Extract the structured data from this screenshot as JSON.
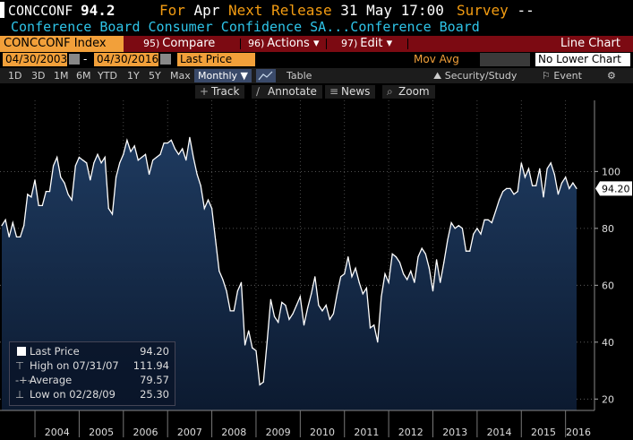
{
  "header": {
    "ticker": "CONCCONF",
    "last_value": "94.2",
    "for_label": "For",
    "for_value": "Apr",
    "next_label": "Next Release",
    "next_value": "31 May 17:00",
    "survey_label": "Survey",
    "survey_value": "--",
    "description": "Conference Board Consumer Confidence SA...Conference Board"
  },
  "toolbar": {
    "index_label": "CONCCONF Index",
    "compare_num": "95)",
    "compare_label": "Compare",
    "actions_num": "96)",
    "actions_label": "Actions",
    "edit_num": "97)",
    "edit_label": "Edit",
    "chart_type": "Line Chart"
  },
  "range": {
    "start_date": "04/30/2003",
    "dash": "-",
    "end_date": "04/30/2016",
    "field": "Last Price",
    "mov_avg": "Mov Avg",
    "lower_chart": "No Lower Chart"
  },
  "period_buttons": [
    "1D",
    "3D",
    "1M",
    "6M",
    "YTD",
    "1Y",
    "5Y",
    "Max"
  ],
  "frequency": "Monthly",
  "table_label": "Table",
  "security_study": "Security/Study",
  "event_label": "Event",
  "tools": {
    "track": "Track",
    "annotate": "Annotate",
    "news": "News",
    "zoom": "Zoom"
  },
  "legend": {
    "last_label": "Last Price",
    "last_value": "94.20",
    "high_label": "High on 07/31/07",
    "high_value": "111.94",
    "avg_label": "Average",
    "avg_value": "79.57",
    "low_label": "Low on 02/28/09",
    "low_value": "25.30"
  },
  "colors": {
    "background": "#000000",
    "area_top": "#1e3a5f",
    "area_bottom": "#0c1a30",
    "line": "#ffffff",
    "accent": "#f2a03a",
    "toolbar_red": "#7c0a12",
    "description": "#2ec4e8"
  },
  "chart_data": {
    "type": "area",
    "title": "Conference Board Consumer Confidence SA",
    "x_tick_labels": [
      "2004",
      "2005",
      "2006",
      "2007",
      "2008",
      "2009",
      "2010",
      "2011",
      "2012",
      "2013",
      "2014",
      "2015",
      "2016"
    ],
    "y_tick_labels": [
      "20",
      "40",
      "60",
      "80",
      "100"
    ],
    "ylim": [
      16,
      125
    ],
    "xlim": [
      "2003-04",
      "2016-04"
    ],
    "grid": true,
    "last_value_label": "94.20",
    "series": [
      {
        "name": "Last Price",
        "x": [
          "2003-04",
          "2003-05",
          "2003-06",
          "2003-07",
          "2003-08",
          "2003-09",
          "2003-10",
          "2003-11",
          "2003-12",
          "2004-01",
          "2004-02",
          "2004-03",
          "2004-04",
          "2004-05",
          "2004-06",
          "2004-07",
          "2004-08",
          "2004-09",
          "2004-10",
          "2004-11",
          "2004-12",
          "2005-01",
          "2005-02",
          "2005-03",
          "2005-04",
          "2005-05",
          "2005-06",
          "2005-07",
          "2005-08",
          "2005-09",
          "2005-10",
          "2005-11",
          "2005-12",
          "2006-01",
          "2006-02",
          "2006-03",
          "2006-04",
          "2006-05",
          "2006-06",
          "2006-07",
          "2006-08",
          "2006-09",
          "2006-10",
          "2006-11",
          "2006-12",
          "2007-01",
          "2007-02",
          "2007-03",
          "2007-04",
          "2007-05",
          "2007-06",
          "2007-07",
          "2007-08",
          "2007-09",
          "2007-10",
          "2007-11",
          "2007-12",
          "2008-01",
          "2008-02",
          "2008-03",
          "2008-04",
          "2008-05",
          "2008-06",
          "2008-07",
          "2008-08",
          "2008-09",
          "2008-10",
          "2008-11",
          "2008-12",
          "2009-01",
          "2009-02",
          "2009-03",
          "2009-04",
          "2009-05",
          "2009-06",
          "2009-07",
          "2009-08",
          "2009-09",
          "2009-10",
          "2009-11",
          "2009-12",
          "2010-01",
          "2010-02",
          "2010-03",
          "2010-04",
          "2010-05",
          "2010-06",
          "2010-07",
          "2010-08",
          "2010-09",
          "2010-10",
          "2010-11",
          "2010-12",
          "2011-01",
          "2011-02",
          "2011-03",
          "2011-04",
          "2011-05",
          "2011-06",
          "2011-07",
          "2011-08",
          "2011-09",
          "2011-10",
          "2011-11",
          "2011-12",
          "2012-01",
          "2012-02",
          "2012-03",
          "2012-04",
          "2012-05",
          "2012-06",
          "2012-07",
          "2012-08",
          "2012-09",
          "2012-10",
          "2012-11",
          "2012-12",
          "2013-01",
          "2013-02",
          "2013-03",
          "2013-04",
          "2013-05",
          "2013-06",
          "2013-07",
          "2013-08",
          "2013-09",
          "2013-10",
          "2013-11",
          "2013-12",
          "2014-01",
          "2014-02",
          "2014-03",
          "2014-04",
          "2014-05",
          "2014-06",
          "2014-07",
          "2014-08",
          "2014-09",
          "2014-10",
          "2014-11",
          "2014-12",
          "2015-01",
          "2015-02",
          "2015-03",
          "2015-04",
          "2015-05",
          "2015-06",
          "2015-07",
          "2015-08",
          "2015-09",
          "2015-10",
          "2015-11",
          "2015-12",
          "2016-01",
          "2016-02",
          "2016-03",
          "2016-04"
        ],
        "values": [
          81,
          83,
          77,
          82,
          77,
          77,
          81,
          92,
          91,
          97,
          88,
          88,
          93,
          93,
          102,
          105,
          98,
          96,
          92,
          90,
          102,
          105,
          104,
          103,
          97,
          103,
          106,
          103,
          105,
          87,
          85,
          98,
          103,
          106,
          111,
          107,
          109,
          104,
          105,
          106,
          99,
          104,
          105,
          106,
          110,
          110,
          111,
          108,
          106,
          108,
          104,
          112,
          105,
          99,
          95,
          87,
          90,
          87,
          76,
          65,
          62,
          58,
          51,
          51,
          58,
          61,
          39,
          44,
          38,
          37,
          25,
          26,
          40,
          55,
          49,
          47,
          54,
          53,
          48,
          50,
          53,
          56,
          46,
          52,
          57,
          63,
          53,
          51,
          53,
          48,
          50,
          57,
          63,
          64,
          70,
          63,
          66,
          61,
          57,
          59,
          45,
          46,
          40,
          56,
          64,
          61,
          71,
          70,
          68,
          64,
          62,
          65,
          61,
          70,
          73,
          71,
          66,
          58,
          69,
          61,
          68,
          76,
          82,
          80,
          81,
          80,
          72,
          72,
          78,
          80,
          78,
          83,
          83,
          82,
          86,
          90,
          93,
          94,
          94,
          92,
          93,
          103,
          98,
          101,
          95,
          95,
          101,
          91,
          101,
          103,
          99,
          92,
          96,
          98,
          94,
          96,
          94
        ]
      }
    ]
  }
}
